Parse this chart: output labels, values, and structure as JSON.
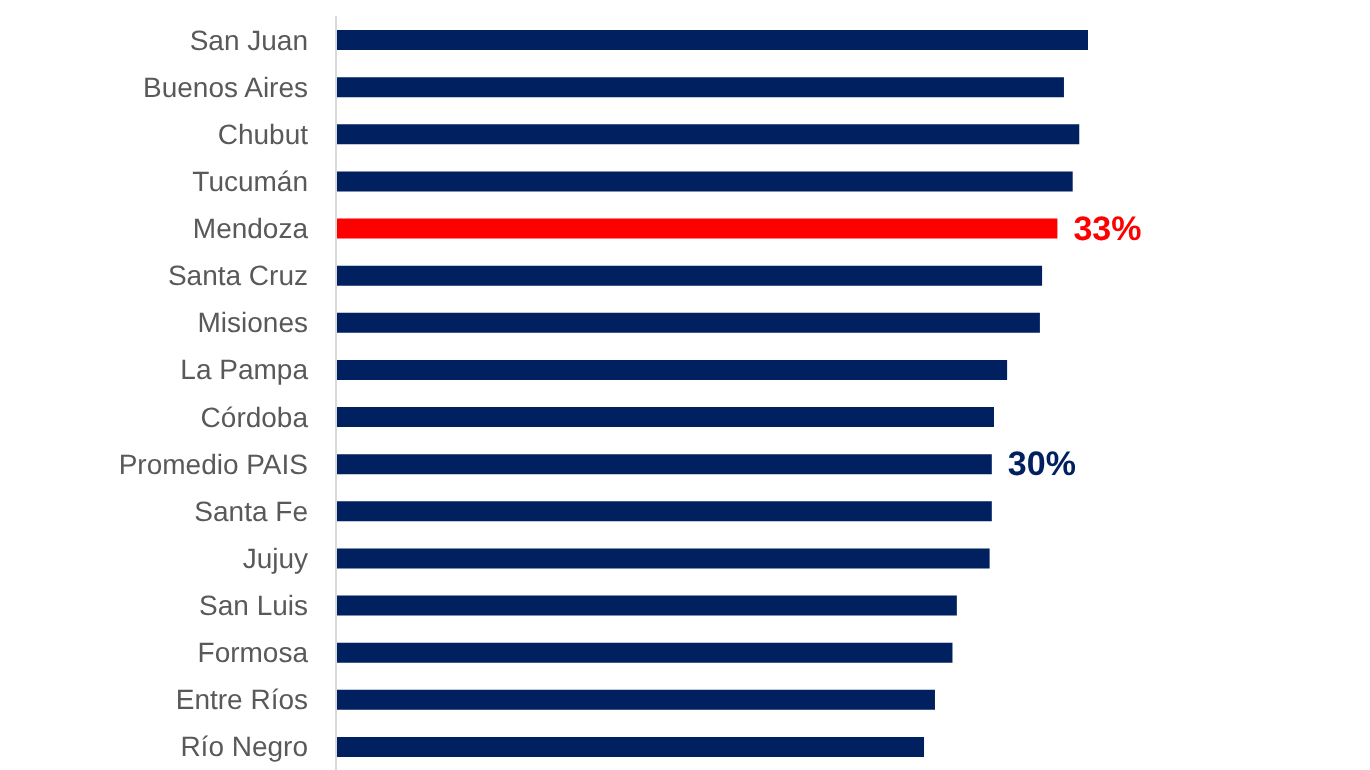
{
  "chart_data": {
    "type": "bar",
    "orientation": "horizontal",
    "categories": [
      "San Juan",
      "Buenos Aires",
      "Chubut",
      "Tucumán",
      "Mendoza",
      "Santa Cruz",
      "Misiones",
      "La Pampa",
      "Córdoba",
      "Promedio PAIS",
      "Santa Fe",
      "Jujuy",
      "San Luis",
      "Formosa",
      "Entre Ríos",
      "Río Negro"
    ],
    "values": [
      34.4,
      33.3,
      34.0,
      33.7,
      33,
      32.3,
      32.2,
      30.7,
      30.1,
      30,
      30.0,
      29.9,
      28.4,
      28.2,
      27.4,
      26.9
    ],
    "colors": [
      "#002060",
      "#002060",
      "#002060",
      "#002060",
      "#ff0000",
      "#002060",
      "#002060",
      "#002060",
      "#002060",
      "#002060",
      "#002060",
      "#002060",
      "#002060",
      "#002060",
      "#002060",
      "#002060"
    ],
    "value_labels": [
      null,
      null,
      null,
      null,
      "33%",
      null,
      null,
      null,
      null,
      "30%",
      null,
      null,
      null,
      null,
      null,
      null
    ],
    "grid": false,
    "legend": false
  }
}
